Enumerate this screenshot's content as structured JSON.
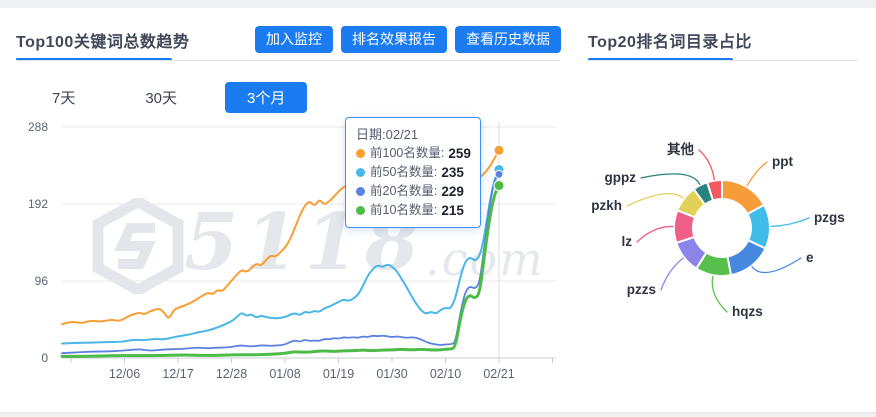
{
  "accent_color": "#1b7cf2",
  "watermark": {
    "logo": "5118-hexagon-logo",
    "number": "5118",
    "suffix": ".com"
  },
  "left_panel": {
    "title": "Top100关键词总数趋势",
    "buttons": [
      {
        "label": "加入监控"
      },
      {
        "label": "排名效果报告"
      },
      {
        "label": "查看历史数据"
      }
    ],
    "tabs": [
      {
        "label": "7天",
        "active": false
      },
      {
        "label": "30天",
        "active": false
      },
      {
        "label": "3个月",
        "active": true
      }
    ]
  },
  "right_panel": {
    "title": "Top20排名词目录占比"
  },
  "tooltip": {
    "date_label": "日期:02/21",
    "rows": [
      {
        "label": "前100名数量:",
        "value": "259",
        "color": "#f99e34"
      },
      {
        "label": "前50名数量:",
        "value": "235",
        "color": "#49b6e8"
      },
      {
        "label": "前20名数量:",
        "value": "229",
        "color": "#5b82e0"
      },
      {
        "label": "前10名数量:",
        "value": "215",
        "color": "#4cbb48"
      }
    ]
  },
  "chart_data": [
    {
      "type": "line",
      "title": "Top100关键词总数趋势",
      "x_labels": [
        "12/06",
        "12/17",
        "12/28",
        "01/08",
        "01/19",
        "01/30",
        "02/10",
        "02/21"
      ],
      "x_unit": "days from series start (≈11/23), 11 days between ticks",
      "ylim": [
        0,
        288
      ],
      "y_ticks": [
        0,
        96,
        192,
        288
      ],
      "grid": "horizontal only",
      "hover_x_label": "02/21",
      "series": [
        {
          "name": "前100名数量",
          "color": "#f99e34",
          "end_value": 259,
          "points": [
            [
              0,
              42
            ],
            [
              2,
              46
            ],
            [
              4,
              43
            ],
            [
              6,
              47
            ],
            [
              8,
              45
            ],
            [
              10,
              48
            ],
            [
              12,
              46
            ],
            [
              13,
              50
            ],
            [
              14,
              53
            ],
            [
              16,
              57
            ],
            [
              17,
              54
            ],
            [
              18,
              58
            ],
            [
              20,
              62
            ],
            [
              21,
              57
            ],
            [
              22,
              48
            ],
            [
              23,
              60
            ],
            [
              24,
              63
            ],
            [
              26,
              67
            ],
            [
              28,
              74
            ],
            [
              30,
              82
            ],
            [
              31,
              79
            ],
            [
              32,
              85
            ],
            [
              33,
              83
            ],
            [
              34,
              90
            ],
            [
              35,
              97
            ],
            [
              36,
              104
            ],
            [
              37,
              110
            ],
            [
              38,
              107
            ],
            [
              39,
              112
            ],
            [
              40,
              118
            ],
            [
              41,
              115
            ],
            [
              42,
              122
            ],
            [
              43,
              128
            ],
            [
              44,
              126
            ],
            [
              45,
              132
            ],
            [
              46,
              138
            ],
            [
              47,
              148
            ],
            [
              48,
              163
            ],
            [
              49,
              178
            ],
            [
              50,
              190
            ],
            [
              51,
              196
            ],
            [
              52,
              189
            ],
            [
              53,
              198
            ],
            [
              54,
              191
            ],
            [
              55,
              195
            ],
            [
              56,
              201
            ],
            [
              57,
              208
            ],
            [
              58,
              213
            ],
            [
              59,
              217
            ],
            [
              60,
              222
            ],
            [
              61,
              226
            ],
            [
              63,
              230
            ],
            [
              65,
              228
            ],
            [
              67,
              231
            ],
            [
              69,
              226
            ],
            [
              71,
              222
            ],
            [
              73,
              219
            ],
            [
              75,
              216
            ],
            [
              77,
              213
            ],
            [
              79,
              211
            ],
            [
              81,
              211
            ],
            [
              83,
              214
            ],
            [
              84,
              217
            ],
            [
              85,
              221
            ],
            [
              86,
              225
            ],
            [
              87,
              230
            ],
            [
              88,
              238
            ],
            [
              89,
              248
            ],
            [
              90,
              259
            ]
          ]
        },
        {
          "name": "前50名数量",
          "color": "#49b6e8",
          "end_value": 235,
          "points": [
            [
              0,
              18
            ],
            [
              3,
              19
            ],
            [
              6,
              19
            ],
            [
              9,
              20
            ],
            [
              12,
              20
            ],
            [
              13,
              21
            ],
            [
              15,
              23
            ],
            [
              17,
              22
            ],
            [
              19,
              24
            ],
            [
              21,
              23
            ],
            [
              23,
              26
            ],
            [
              24,
              27
            ],
            [
              26,
              29
            ],
            [
              28,
              32
            ],
            [
              30,
              34
            ],
            [
              32,
              38
            ],
            [
              34,
              43
            ],
            [
              35,
              46
            ],
            [
              36,
              51
            ],
            [
              37,
              57
            ],
            [
              38,
              52
            ],
            [
              39,
              55
            ],
            [
              40,
              50
            ],
            [
              41,
              53
            ],
            [
              42,
              51
            ],
            [
              44,
              49
            ],
            [
              46,
              51
            ],
            [
              47,
              54
            ],
            [
              48,
              56
            ],
            [
              49,
              53
            ],
            [
              50,
              58
            ],
            [
              51,
              56
            ],
            [
              52,
              59
            ],
            [
              53,
              57
            ],
            [
              54,
              62
            ],
            [
              55,
              64
            ],
            [
              56,
              67
            ],
            [
              57,
              70
            ],
            [
              58,
              73
            ],
            [
              59,
              71
            ],
            [
              60,
              74
            ],
            [
              61,
              79
            ],
            [
              62,
              90
            ],
            [
              63,
              103
            ],
            [
              64,
              111
            ],
            [
              65,
              116
            ],
            [
              66,
              113
            ],
            [
              67,
              117
            ],
            [
              68,
              114
            ],
            [
              69,
              108
            ],
            [
              70,
              98
            ],
            [
              71,
              88
            ],
            [
              72,
              77
            ],
            [
              73,
              67
            ],
            [
              74,
              59
            ],
            [
              75,
              55
            ],
            [
              76,
              58
            ],
            [
              77,
              55
            ],
            [
              78,
              60
            ],
            [
              79,
              63
            ],
            [
              80,
              61
            ],
            [
              81,
              74
            ],
            [
              82,
              100
            ],
            [
              83,
              120
            ],
            [
              84,
              126
            ],
            [
              85,
              121
            ],
            [
              86,
              126
            ],
            [
              87,
              152
            ],
            [
              88,
              192
            ],
            [
              89,
              222
            ],
            [
              90,
              235
            ]
          ]
        },
        {
          "name": "前20名数量",
          "color": "#5b82e0",
          "end_value": 229,
          "points": [
            [
              0,
              6
            ],
            [
              3,
              7
            ],
            [
              6,
              8
            ],
            [
              9,
              8
            ],
            [
              12,
              9
            ],
            [
              14,
              10
            ],
            [
              16,
              11
            ],
            [
              18,
              9
            ],
            [
              20,
              10
            ],
            [
              22,
              11
            ],
            [
              24,
              11
            ],
            [
              26,
              12
            ],
            [
              28,
              13
            ],
            [
              30,
              12
            ],
            [
              32,
              13
            ],
            [
              34,
              13
            ],
            [
              35,
              14
            ],
            [
              37,
              16
            ],
            [
              39,
              14
            ],
            [
              41,
              16
            ],
            [
              43,
              15
            ],
            [
              45,
              16
            ],
            [
              46,
              17
            ],
            [
              47,
              20
            ],
            [
              48,
              22
            ],
            [
              49,
              20
            ],
            [
              50,
              23
            ],
            [
              51,
              21
            ],
            [
              52,
              22
            ],
            [
              53,
              21
            ],
            [
              54,
              24
            ],
            [
              55,
              23
            ],
            [
              56,
              25
            ],
            [
              57,
              24
            ],
            [
              58,
              26
            ],
            [
              59,
              25
            ],
            [
              60,
              26
            ],
            [
              61,
              25
            ],
            [
              62,
              27
            ],
            [
              63,
              26
            ],
            [
              64,
              28
            ],
            [
              65,
              27
            ],
            [
              66,
              28
            ],
            [
              67,
              27
            ],
            [
              68,
              26
            ],
            [
              69,
              27
            ],
            [
              70,
              26
            ],
            [
              71,
              25
            ],
            [
              72,
              26
            ],
            [
              73,
              25
            ],
            [
              74,
              23
            ],
            [
              75,
              20
            ],
            [
              76,
              18
            ],
            [
              77,
              17
            ],
            [
              78,
              16
            ],
            [
              79,
              17
            ],
            [
              80,
              17
            ],
            [
              81,
              19
            ],
            [
              82,
              55
            ],
            [
              83,
              82
            ],
            [
              84,
              90
            ],
            [
              85,
              86
            ],
            [
              86,
              93
            ],
            [
              87,
              140
            ],
            [
              88,
              188
            ],
            [
              89,
              220
            ],
            [
              90,
              229
            ]
          ]
        },
        {
          "name": "前10名数量",
          "color": "#4cbb48",
          "end_value": 215,
          "points": [
            [
              0,
              2
            ],
            [
              5,
              2
            ],
            [
              10,
              3
            ],
            [
              15,
              3
            ],
            [
              20,
              3
            ],
            [
              25,
              4
            ],
            [
              30,
              3
            ],
            [
              35,
              4
            ],
            [
              40,
              4
            ],
            [
              44,
              5
            ],
            [
              46,
              6
            ],
            [
              48,
              8
            ],
            [
              50,
              7
            ],
            [
              52,
              8
            ],
            [
              54,
              9
            ],
            [
              56,
              8
            ],
            [
              58,
              9
            ],
            [
              60,
              9
            ],
            [
              62,
              10
            ],
            [
              64,
              9
            ],
            [
              66,
              10
            ],
            [
              68,
              10
            ],
            [
              70,
              11
            ],
            [
              72,
              10
            ],
            [
              74,
              11
            ],
            [
              76,
              10
            ],
            [
              78,
              10
            ],
            [
              79,
              11
            ],
            [
              80,
              11
            ],
            [
              81,
              13
            ],
            [
              82,
              48
            ],
            [
              83,
              72
            ],
            [
              84,
              79
            ],
            [
              85,
              74
            ],
            [
              86,
              80
            ],
            [
              87,
              128
            ],
            [
              88,
              172
            ],
            [
              89,
              203
            ],
            [
              90,
              215
            ]
          ]
        }
      ]
    },
    {
      "type": "donut",
      "title": "Top20排名词目录占比",
      "legend_position": "labels around ring with leader lines",
      "slices": [
        {
          "label": "ppt",
          "percent": 17,
          "color": "#f69d3a",
          "label_x": 206,
          "label_y": 62,
          "label_anchor": "start"
        },
        {
          "label": "pzgs",
          "percent": 15,
          "color": "#41bce8",
          "label_x": 248,
          "label_y": 118,
          "label_anchor": "start"
        },
        {
          "label": "e",
          "percent": 15,
          "color": "#4687e0",
          "label_x": 240,
          "label_y": 158,
          "label_anchor": "start"
        },
        {
          "label": "hqzs",
          "percent": 12,
          "color": "#57c04c",
          "label_x": 166,
          "label_y": 212,
          "label_anchor": "start"
        },
        {
          "label": "pzzs",
          "percent": 11,
          "color": "#8c85e8",
          "label_x": 90,
          "label_y": 190,
          "label_anchor": "end"
        },
        {
          "label": "lz",
          "percent": 11,
          "color": "#f05f88",
          "label_x": 66,
          "label_y": 142,
          "label_anchor": "end"
        },
        {
          "label": "pzkh",
          "percent": 9,
          "color": "#e2d158",
          "label_x": 56,
          "label_y": 106,
          "label_anchor": "end"
        },
        {
          "label": "gppz",
          "percent": 5,
          "color": "#2b837d",
          "label_x": 70,
          "label_y": 78,
          "label_anchor": "end"
        },
        {
          "label": "其他",
          "percent": 5,
          "color": "#f15b60",
          "label_x": 128,
          "label_y": 50,
          "label_anchor": "end"
        }
      ]
    }
  ]
}
